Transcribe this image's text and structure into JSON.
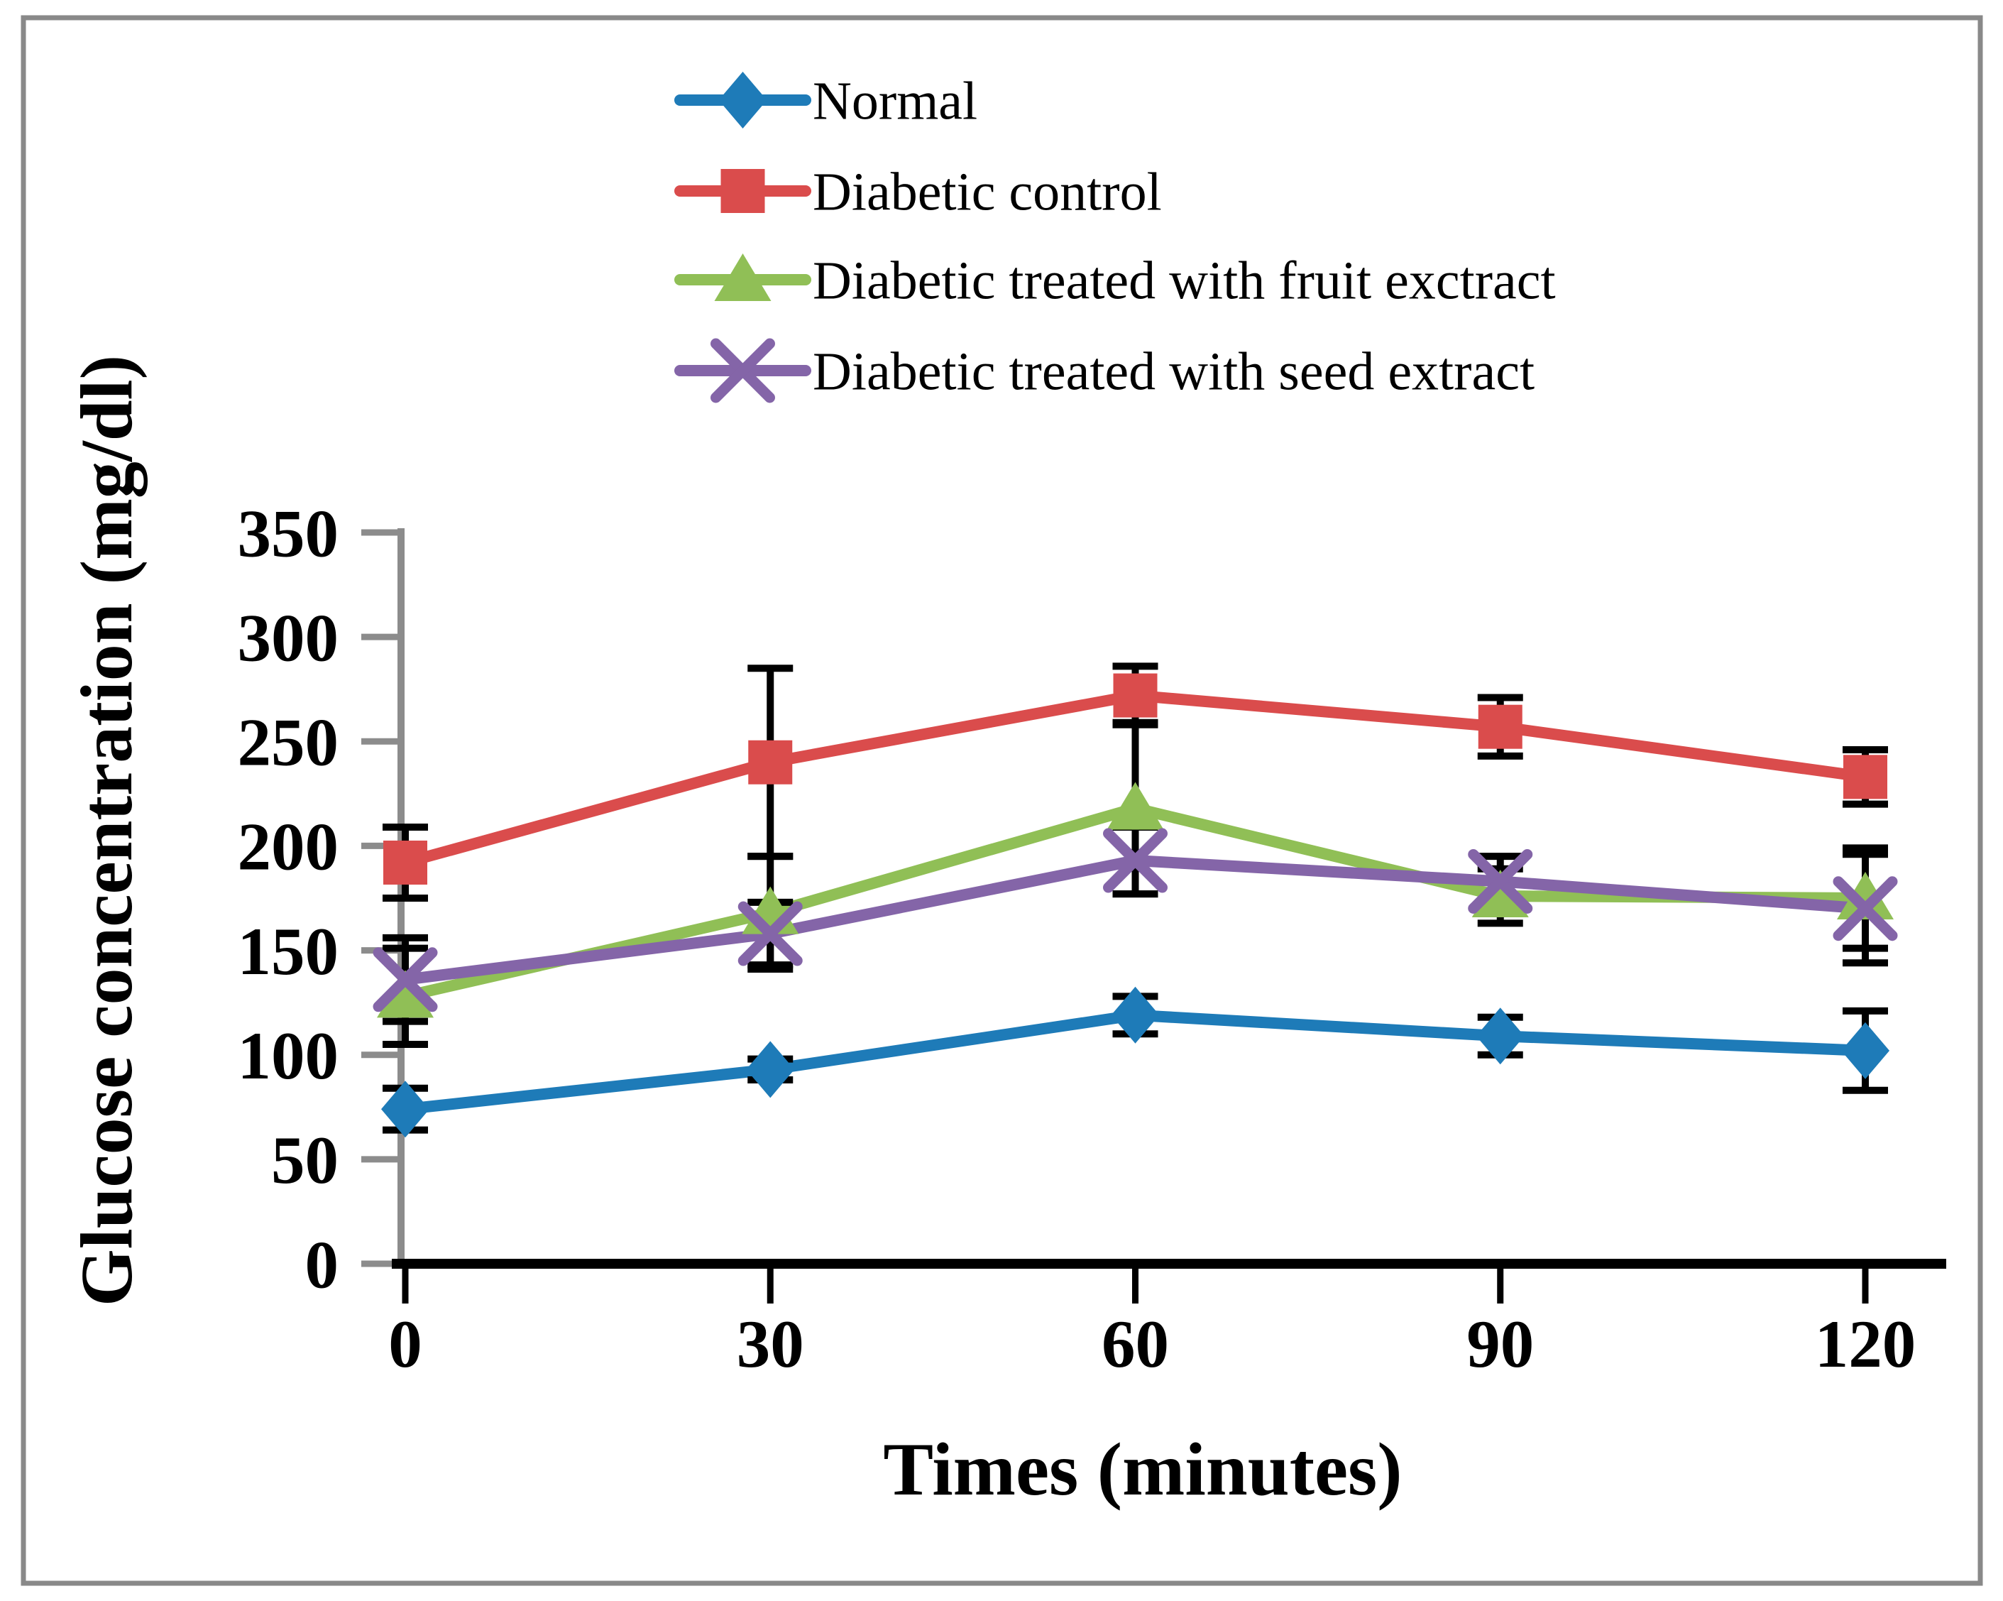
{
  "chart_data": {
    "type": "line",
    "title": "",
    "xlabel": "Times (minutes)",
    "ylabel": "Glucose concentration (mg/dl)",
    "x": [
      0,
      30,
      60,
      90,
      120
    ],
    "x_tick_labels": [
      "0",
      "30",
      "60",
      "90",
      "120"
    ],
    "y_ticks": [
      0,
      50,
      100,
      150,
      200,
      250,
      300,
      350
    ],
    "ylim": [
      0,
      350
    ],
    "xlim": [
      0,
      120
    ],
    "grid": false,
    "legend_position": "top-center",
    "series": [
      {
        "name": "Normal",
        "marker": "diamond",
        "color": "#1E7BB8",
        "values": [
          74,
          93,
          119,
          109,
          102
        ],
        "error": [
          10,
          5,
          9,
          9,
          19
        ]
      },
      {
        "name": "Diabetic control",
        "marker": "square",
        "color": "#DA4C4C",
        "values": [
          192,
          240,
          272,
          257,
          233
        ],
        "error": [
          17,
          45,
          14,
          14,
          13
        ]
      },
      {
        "name": "Diabetic treated with fruit exctract",
        "marker": "triangle",
        "color": "#90BF56",
        "values": [
          128,
          168,
          218,
          176,
          175
        ],
        "error": [
          23,
          27,
          41,
          13,
          24
        ]
      },
      {
        "name": "Diabetic treated with seed extract",
        "marker": "x-cross",
        "color": "#8465A8",
        "values": [
          136,
          158,
          193,
          183,
          170
        ],
        "error": [
          20,
          15,
          16,
          12,
          26
        ]
      }
    ],
    "error_bar_color": "#000000",
    "y_axis_color": "#8C8C8C",
    "x_axis_color": "#000000",
    "figure_border_color": "#898989",
    "background": "#FFFFFF"
  }
}
